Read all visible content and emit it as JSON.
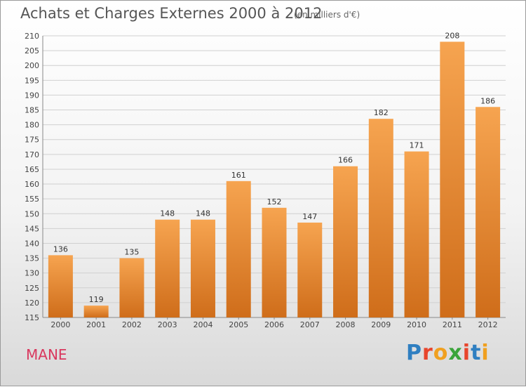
{
  "header": {
    "title": "Achats et Charges Externes 2000 à 2012",
    "subtitle": "(en milliers d'€)"
  },
  "footer": {
    "place": "MANE",
    "logo": "Proxiti"
  },
  "colors": {
    "bar_light": "#f6a450",
    "bar_dark": "#cf6d1a",
    "grid": "#d0d0d0",
    "place": "#d9385e"
  },
  "chart_data": {
    "type": "bar",
    "title": "Achats et Charges Externes 2000 à 2012",
    "subtitle": "(en milliers d'€)",
    "categories": [
      "2000",
      "2001",
      "2002",
      "2003",
      "2004",
      "2005",
      "2006",
      "2007",
      "2008",
      "2009",
      "2010",
      "2011",
      "2012"
    ],
    "values": [
      136,
      119,
      135,
      148,
      148,
      161,
      152,
      147,
      166,
      182,
      171,
      208,
      186
    ],
    "ylim": [
      115,
      210
    ],
    "yticks": [
      115,
      120,
      125,
      130,
      135,
      140,
      145,
      150,
      155,
      160,
      165,
      170,
      175,
      180,
      185,
      190,
      195,
      200,
      205,
      210
    ],
    "grid": true,
    "legend": "none"
  }
}
